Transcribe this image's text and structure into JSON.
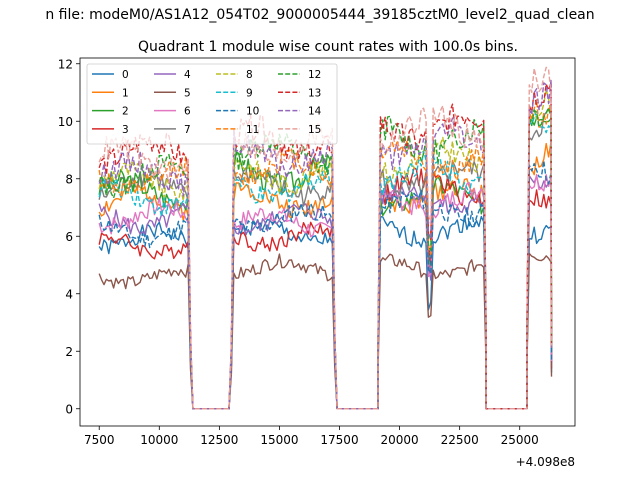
{
  "suptitle": "n file: modeM0/AS1A12_054T02_9000005444_39185cztM0_level2_quad_clean",
  "chart_data": {
    "type": "line",
    "title": "Quadrant 1 module wise count rates with 100.0s bins.",
    "xlabel": "",
    "ylabel": "",
    "x_offset_label": "+4.098e8",
    "xlim": [
      6700,
      27300
    ],
    "ylim": [
      -0.6,
      12.2
    ],
    "xticks": [
      7500,
      10000,
      12500,
      15000,
      17500,
      20000,
      22500,
      25000
    ],
    "xtick_labels": [
      "7500",
      "10000",
      "12500",
      "15000",
      "17500",
      "20000",
      "22500",
      "25000"
    ],
    "yticks": [
      0,
      2,
      4,
      6,
      8,
      10,
      12
    ],
    "ytick_labels": [
      "0",
      "2",
      "4",
      "6",
      "8",
      "10",
      "12"
    ],
    "grid": false,
    "legend_position": "top-left",
    "legend_columns": 4,
    "segments": [
      {
        "x_start": 7500,
        "x_end": 11200
      },
      {
        "x_start": 13100,
        "x_end": 17200
      },
      {
        "x_start": 19200,
        "x_end": 23500
      },
      {
        "x_start": 25400,
        "x_end": 26300
      }
    ],
    "gaps": [
      {
        "x_start": 11400,
        "x_end": 12900
      },
      {
        "x_start": 17400,
        "x_end": 19100
      },
      {
        "x_start": 23600,
        "x_end": 25300
      }
    ],
    "series": [
      {
        "name": "0",
        "color": "#1f77b4",
        "dash": "solid",
        "levels": [
          5.9,
          6.1,
          6.2,
          6.3
        ]
      },
      {
        "name": "1",
        "color": "#ff7f0e",
        "dash": "solid",
        "levels": [
          7.2,
          7.3,
          7.4,
          8.6
        ]
      },
      {
        "name": "2",
        "color": "#2ca02c",
        "dash": "solid",
        "levels": [
          7.6,
          8.2,
          7.4,
          9.9
        ]
      },
      {
        "name": "3",
        "color": "#d62728",
        "dash": "solid",
        "levels": [
          5.7,
          6.0,
          7.7,
          7.0
        ]
      },
      {
        "name": "4",
        "color": "#9467bd",
        "dash": "solid",
        "levels": [
          6.6,
          6.6,
          7.3,
          8.0
        ]
      },
      {
        "name": "5",
        "color": "#8c564b",
        "dash": "solid",
        "levels": [
          4.6,
          4.9,
          4.9,
          5.6
        ]
      },
      {
        "name": "6",
        "color": "#e377c2",
        "dash": "solid",
        "levels": [
          6.7,
          6.5,
          7.3,
          8.3
        ]
      },
      {
        "name": "7",
        "color": "#7f7f7f",
        "dash": "solid",
        "levels": [
          7.7,
          7.8,
          8.0,
          9.9
        ]
      },
      {
        "name": "8",
        "color": "#bcbd22",
        "dash": "dashed",
        "levels": [
          7.9,
          8.2,
          8.6,
          10.2
        ]
      },
      {
        "name": "9",
        "color": "#17becf",
        "dash": "dashed",
        "levels": [
          7.4,
          7.7,
          8.2,
          9.7
        ]
      },
      {
        "name": "10",
        "color": "#1f77b4",
        "dash": "dashed",
        "levels": [
          6.2,
          6.6,
          7.0,
          8.3
        ]
      },
      {
        "name": "11",
        "color": "#ff7f0e",
        "dash": "dashed",
        "levels": [
          8.0,
          8.3,
          8.7,
          10.6
        ]
      },
      {
        "name": "12",
        "color": "#2ca02c",
        "dash": "dashed",
        "levels": [
          8.1,
          8.9,
          9.4,
          10.8
        ]
      },
      {
        "name": "13",
        "color": "#d62728",
        "dash": "dashed",
        "levels": [
          8.9,
          9.3,
          9.8,
          11.2
        ]
      },
      {
        "name": "14",
        "color": "#9467bd",
        "dash": "dashed",
        "levels": [
          8.2,
          8.8,
          9.2,
          10.6
        ]
      },
      {
        "name": "15",
        "color": "#e8a09a",
        "dash": "dashed",
        "levels": [
          8.7,
          9.2,
          9.7,
          11.0
        ]
      }
    ]
  }
}
